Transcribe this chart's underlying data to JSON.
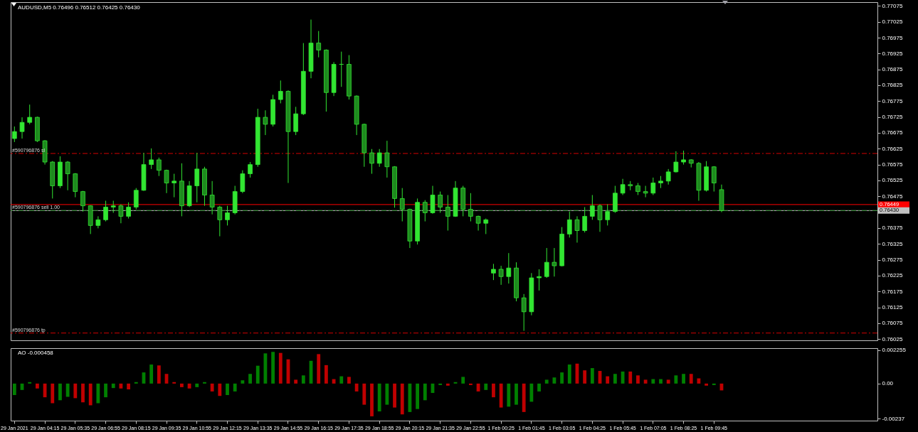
{
  "chart_data": [
    {
      "type": "candlestick",
      "title": "AUDUSD,M5 0.76496 0.76512 0.76425 0.76430",
      "color": "#32e632",
      "categories": [
        null,
        null,
        null,
        null,
        null,
        null,
        null,
        null,
        null,
        null,
        null,
        null,
        null,
        null,
        null,
        null,
        null,
        null,
        null,
        null,
        null,
        null,
        null,
        null,
        null,
        null,
        null,
        null,
        null,
        null,
        null,
        null,
        null,
        null,
        null,
        null,
        null,
        null,
        null,
        null,
        null,
        null,
        null,
        null,
        null,
        null,
        null,
        null,
        null,
        null,
        null,
        null,
        null,
        null,
        null,
        null,
        null,
        null,
        null,
        null,
        null,
        null,
        null,
        null,
        null,
        null,
        null,
        null,
        null,
        null,
        null,
        null,
        null,
        null,
        null,
        null,
        null,
        null,
        null,
        null,
        null,
        null,
        null,
        null,
        null,
        null,
        null,
        null,
        null,
        null,
        null,
        null,
        null,
        null,
        null,
        null,
        null,
        null,
        null,
        null,
        null,
        null,
        null,
        null,
        null,
        null,
        null,
        null,
        null,
        null,
        null,
        null,
        null,
        null
      ],
      "ohlc": [
        [
          0.76657,
          0.76695,
          0.76646,
          0.76679
        ],
        [
          0.76679,
          0.76724,
          0.76657,
          0.76708
        ],
        [
          0.76708,
          0.76764,
          0.76702,
          0.76724
        ],
        [
          0.76724,
          0.76726,
          0.76646,
          0.7665
        ],
        [
          0.7665,
          0.76652,
          0.76575,
          0.76583
        ],
        [
          0.76583,
          0.76586,
          0.76468,
          0.76508
        ],
        [
          0.76508,
          0.76601,
          0.76501,
          0.76583
        ],
        [
          0.76583,
          0.76586,
          0.76494,
          0.76546
        ],
        [
          0.76546,
          0.76548,
          0.76472,
          0.7649
        ],
        [
          0.7649,
          0.76492,
          0.76427,
          0.76445
        ],
        [
          0.76445,
          0.76447,
          0.76356,
          0.76383
        ],
        [
          0.76383,
          0.76412,
          0.76374,
          0.76401
        ],
        [
          0.76401,
          0.76461,
          0.76396,
          0.76441
        ],
        [
          0.76441,
          0.76461,
          0.76423,
          0.76445
        ],
        [
          0.76445,
          0.7645,
          0.7639,
          0.76412
        ],
        [
          0.76412,
          0.76456,
          0.76405,
          0.76441
        ],
        [
          0.76441,
          0.76501,
          0.76434,
          0.76494
        ],
        [
          0.76494,
          0.76612,
          0.76492,
          0.76575
        ],
        [
          0.76575,
          0.76626,
          0.76561,
          0.7659
        ],
        [
          0.7659,
          0.76597,
          0.76539,
          0.76557
        ],
        [
          0.76557,
          0.76559,
          0.76485,
          0.76517
        ],
        [
          0.76517,
          0.76546,
          0.76472,
          0.76523
        ],
        [
          0.76523,
          0.76579,
          0.76412,
          0.76445
        ],
        [
          0.76445,
          0.76523,
          0.76441,
          0.76508
        ],
        [
          0.76508,
          0.76612,
          0.76456,
          0.76561
        ],
        [
          0.76561,
          0.76568,
          0.76445,
          0.76479
        ],
        [
          0.76479,
          0.76523,
          0.76418,
          0.76441
        ],
        [
          0.76441,
          0.76445,
          0.76349,
          0.76401
        ],
        [
          0.76401,
          0.76445,
          0.76383,
          0.76423
        ],
        [
          0.76423,
          0.76508,
          0.76418,
          0.7649
        ],
        [
          0.7649,
          0.76557,
          0.76485,
          0.76546
        ],
        [
          0.76546,
          0.76583,
          0.76534,
          0.76575
        ],
        [
          0.76575,
          0.76751,
          0.76568,
          0.76724
        ],
        [
          0.76724,
          0.76746,
          0.76668,
          0.76702
        ],
        [
          0.76702,
          0.76795,
          0.76695,
          0.7678
        ],
        [
          0.7678,
          0.7684,
          0.76768,
          0.76806
        ],
        [
          0.76806,
          0.76809,
          0.76517,
          0.76679
        ],
        [
          0.76679,
          0.76757,
          0.76668,
          0.76735
        ],
        [
          0.76735,
          0.76958,
          0.76731,
          0.76869
        ],
        [
          0.76869,
          0.77032,
          0.76847,
          0.76958
        ],
        [
          0.76958,
          0.76996,
          0.76913,
          0.76936
        ],
        [
          0.76936,
          0.76938,
          0.76742,
          0.76802
        ],
        [
          0.76802,
          0.76898,
          0.76791,
          0.76891
        ],
        [
          0.76891,
          0.76931,
          0.7682,
          0.76891
        ],
        [
          0.76891,
          0.7692,
          0.7678,
          0.76791
        ],
        [
          0.76791,
          0.76793,
          0.76668,
          0.76702
        ],
        [
          0.76702,
          0.76704,
          0.76568,
          0.76612
        ],
        [
          0.76612,
          0.76624,
          0.76546,
          0.76579
        ],
        [
          0.76579,
          0.76624,
          0.76568,
          0.76612
        ],
        [
          0.76612,
          0.7665,
          0.76534,
          0.76568
        ],
        [
          0.76568,
          0.7657,
          0.76439,
          0.76468
        ],
        [
          0.76468,
          0.76501,
          0.76396,
          0.76434
        ],
        [
          0.76434,
          0.76436,
          0.76312,
          0.76334
        ],
        [
          0.76334,
          0.76468,
          0.76323,
          0.76456
        ],
        [
          0.76456,
          0.76463,
          0.76396,
          0.76423
        ],
        [
          0.76423,
          0.76508,
          0.7642,
          0.76479
        ],
        [
          0.76479,
          0.7649,
          0.76423,
          0.76441
        ],
        [
          0.76441,
          0.76479,
          0.76367,
          0.76412
        ],
        [
          0.76412,
          0.76523,
          0.7641,
          0.76501
        ],
        [
          0.76501,
          0.76508,
          0.76412,
          0.76434
        ],
        [
          0.76434,
          0.76485,
          0.76396,
          0.76412
        ],
        [
          0.76412,
          0.76414,
          0.76367,
          0.7639
        ],
        [
          0.7639,
          0.76405,
          0.76356,
          0.76401
        ],
        [
          0.76233,
          0.76262,
          0.76211,
          0.76245
        ],
        [
          0.76245,
          0.76256,
          0.76196,
          0.76222
        ],
        [
          0.76222,
          0.76296,
          0.762,
          0.76249
        ],
        [
          0.76249,
          0.76267,
          0.76144,
          0.76155
        ],
        [
          0.76155,
          0.76167,
          0.76051,
          0.76111
        ],
        [
          0.76111,
          0.76233,
          0.761,
          0.76218
        ],
        [
          0.76218,
          0.76245,
          0.76178,
          0.76222
        ],
        [
          0.76222,
          0.76312,
          0.76218,
          0.76267
        ],
        [
          0.76267,
          0.76312,
          0.76222,
          0.76256
        ],
        [
          0.76256,
          0.76378,
          0.76254,
          0.76356
        ],
        [
          0.76356,
          0.76427,
          0.76345,
          0.76401
        ],
        [
          0.76401,
          0.76412,
          0.76329,
          0.76367
        ],
        [
          0.76367,
          0.76441,
          0.76361,
          0.76412
        ],
        [
          0.76412,
          0.76479,
          0.76401,
          0.76445
        ],
        [
          0.76445,
          0.7645,
          0.76363,
          0.76401
        ],
        [
          0.76401,
          0.7645,
          0.76383,
          0.76427
        ],
        [
          0.76427,
          0.76508,
          0.76423,
          0.76485
        ],
        [
          0.76485,
          0.7653,
          0.76479,
          0.76512
        ],
        [
          0.76512,
          0.76523,
          0.76494,
          0.76508
        ],
        [
          0.76508,
          0.76517,
          0.76479,
          0.7649
        ],
        [
          0.7649,
          0.76508,
          0.76472,
          0.76485
        ],
        [
          0.76485,
          0.76534,
          0.76479,
          0.76517
        ],
        [
          0.76517,
          0.76539,
          0.76501,
          0.76523
        ],
        [
          0.76523,
          0.76561,
          0.76512,
          0.76552
        ],
        [
          0.76552,
          0.76617,
          0.7655,
          0.76583
        ],
        [
          0.76583,
          0.76619,
          0.76575,
          0.7659
        ],
        [
          0.7659,
          0.76592,
          0.76566,
          0.76579
        ],
        [
          0.76579,
          0.76583,
          0.76461,
          0.76494
        ],
        [
          0.76494,
          0.76586,
          0.7649,
          0.76568
        ],
        [
          0.76568,
          0.7657,
          0.7649,
          0.76517
        ],
        [
          0.76496,
          0.76512,
          0.76425,
          0.7643
        ],
        null,
        null,
        null,
        null,
        null,
        null,
        null,
        null,
        null,
        null,
        null,
        null,
        null,
        null,
        null,
        null,
        null,
        null,
        null,
        null
      ],
      "ylim": [
        0.76021,
        0.77087
      ],
      "yticks": [
        0.76025,
        0.76075,
        0.76125,
        0.76175,
        0.76225,
        0.76275,
        0.76325,
        0.76375,
        0.76475,
        0.76525,
        0.76575,
        0.76625,
        0.76675,
        0.76725,
        0.76775,
        0.76825,
        0.76875,
        0.76925,
        0.76975,
        0.77025,
        0.77075
      ],
      "tick_labels": "y",
      "ref_lines": [
        {
          "axis": "y",
          "value": 0.7661,
          "label": "#590796876 sl",
          "color": "#d40000",
          "line_style": "dashed"
        },
        {
          "axis": "y",
          "value": 0.76449,
          "label": "0.76449",
          "color": "#ff0000",
          "line_style": "solid"
        },
        {
          "axis": "y",
          "value": 0.7643,
          "label": "0.76430",
          "color": "#c0c0c0",
          "line_style": "solid"
        },
        {
          "axis": "y",
          "value": 0.7643,
          "label": "#590796876 sell 1.00",
          "color": "#2e8b2e",
          "line_style": "dashed"
        },
        {
          "axis": "y",
          "value": 0.76044,
          "label": "#590796876 tp",
          "color": "#d40000",
          "line_style": "dashed"
        }
      ]
    },
    {
      "type": "bar",
      "title": "AO -0.000458",
      "categories": [
        "29 Jan 2021",
        null,
        null,
        null,
        "29 Jan 04:15",
        null,
        null,
        null,
        "29 Jan 05:35",
        null,
        null,
        null,
        "29 Jan 06:55",
        null,
        null,
        null,
        "29 Jan 08:15",
        null,
        null,
        null,
        "29 Jan 09:35",
        null,
        null,
        null,
        "29 Jan 10:55",
        null,
        null,
        null,
        "29 Jan 12:15",
        null,
        null,
        null,
        "29 Jan 13:35",
        null,
        null,
        null,
        "29 Jan 14:55",
        null,
        null,
        null,
        "29 Jan 16:15",
        null,
        null,
        null,
        "29 Jan 17:35",
        null,
        null,
        null,
        "29 Jan 18:55",
        null,
        null,
        null,
        "29 Jan 20:15",
        null,
        null,
        null,
        "29 Jan 21:35",
        null,
        null,
        null,
        "29 Jan 22:55",
        null,
        null,
        null,
        "1 Feb 00:25",
        null,
        null,
        null,
        "1 Feb 01:45",
        null,
        null,
        null,
        "1 Feb 03:05",
        null,
        null,
        null,
        "1 Feb 04:25",
        null,
        null,
        null,
        "1 Feb 05:45",
        null,
        null,
        null,
        "1 Feb 07:05",
        null,
        null,
        null,
        "1 Feb 08:25",
        null,
        null,
        null,
        "1 Feb 09:45",
        null,
        null,
        null,
        null,
        null,
        null,
        null,
        null,
        null,
        null,
        null,
        null,
        null,
        null,
        null,
        null,
        null,
        null,
        null,
        null,
        null
      ],
      "values": [
        -0.00077,
        -0.00043,
        0.0001,
        -0.00033,
        -0.00092,
        -0.00132,
        -0.00112,
        -0.00089,
        -0.00098,
        -0.00126,
        -0.00146,
        -0.00132,
        -0.00092,
        -0.0003,
        -0.00033,
        -0.00039,
        0.0001,
        0.00075,
        0.00128,
        0.00122,
        0.00065,
        0.0001,
        -0.00024,
        -0.00033,
        -0.00024,
        0.0001,
        -0.00053,
        -0.00083,
        -0.00077,
        -0.00053,
        0.00022,
        0.00065,
        0.0012,
        0.00203,
        0.00213,
        0.00206,
        0.00163,
        0.00026,
        0.00055,
        0.00153,
        0.00198,
        0.00124,
        0.0003,
        0.00049,
        0.00045,
        -0.00053,
        -0.00142,
        -0.0022,
        -0.00187,
        -0.00142,
        -0.00161,
        -0.00207,
        -0.00191,
        -0.00171,
        -0.00112,
        -0.00063,
        -0.0001,
        -0.00014,
        0.0001,
        0.00045,
        -0.0001,
        -0.00053,
        -0.00043,
        -0.00092,
        -0.00161,
        -0.00155,
        -0.00142,
        -0.00191,
        -0.00122,
        -0.00053,
        0.00026,
        0.00041,
        0.00075,
        0.00128,
        0.00134,
        0.00089,
        0.00104,
        0.00085,
        0.00049,
        0.00065,
        0.00081,
        0.00081,
        0.00055,
        0.00026,
        0.0003,
        0.0003,
        0.00026,
        0.00055,
        0.00065,
        0.00065,
        0.00035,
        -0.00014,
        -0.0001,
        -0.000458,
        null,
        null,
        null,
        null,
        null,
        null,
        null,
        null,
        null,
        null,
        null,
        null,
        null,
        null,
        null,
        null,
        null,
        null,
        null,
        null
      ],
      "colors": [
        "#008000",
        "#008000",
        "#008000",
        "#c00000",
        "#c00000",
        "#c00000",
        "#008000",
        "#008000",
        "#c00000",
        "#c00000",
        "#c00000",
        "#008000",
        "#008000",
        "#008000",
        "#c00000",
        "#c00000",
        "#008000",
        "#008000",
        "#008000",
        "#c00000",
        "#c00000",
        "#c00000",
        "#c00000",
        "#c00000",
        "#008000",
        "#008000",
        "#c00000",
        "#c00000",
        "#008000",
        "#008000",
        "#008000",
        "#008000",
        "#008000",
        "#008000",
        "#008000",
        "#c00000",
        "#c00000",
        "#c00000",
        "#008000",
        "#008000",
        "#c00000",
        "#c00000",
        "#c00000",
        "#008000",
        "#c00000",
        "#c00000",
        "#c00000",
        "#c00000",
        "#008000",
        "#008000",
        "#c00000",
        "#c00000",
        "#008000",
        "#008000",
        "#008000",
        "#008000",
        "#008000",
        "#c00000",
        "#008000",
        "#008000",
        "#c00000",
        "#c00000",
        "#008000",
        "#c00000",
        "#c00000",
        "#008000",
        "#008000",
        "#c00000",
        "#008000",
        "#008000",
        "#008000",
        "#008000",
        "#008000",
        "#008000",
        "#c00000",
        "#c00000",
        "#008000",
        "#c00000",
        "#c00000",
        "#008000",
        "#008000",
        "#c00000",
        "#c00000",
        "#c00000",
        "#008000",
        "#008000",
        "#c00000",
        "#008000",
        "#008000",
        "#c00000",
        "#c00000",
        "#c00000",
        "#008000",
        "#c00000",
        null,
        null,
        null,
        null,
        null,
        null,
        null,
        null,
        null,
        null,
        null,
        null,
        null,
        null,
        null,
        null,
        null,
        null,
        null,
        null
      ],
      "ylim": [
        -0.00249,
        0.00238
      ],
      "yticks": [
        0.002255,
        {
          "value": 0,
          "label": "0.00"
        },
        -0.00237
      ]
    }
  ]
}
